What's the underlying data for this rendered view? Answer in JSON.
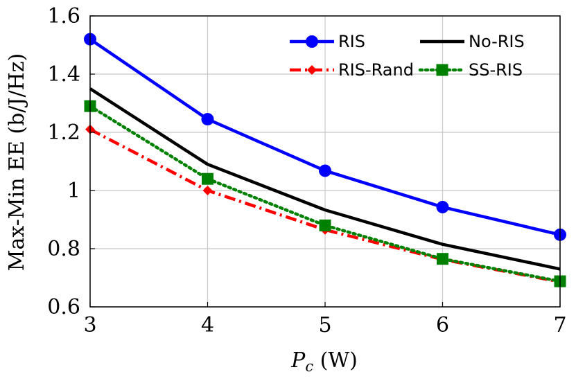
{
  "chart_data": {
    "type": "line",
    "x": [
      3,
      4,
      5,
      6,
      7
    ],
    "xlim": [
      3,
      7
    ],
    "ylim": [
      0.6,
      1.6
    ],
    "xticks": [
      "3",
      "4",
      "5",
      "6",
      "7"
    ],
    "yticks": [
      "0.6",
      "0.8",
      "1",
      "1.2",
      "1.4",
      "1.6"
    ],
    "xlabel_var": "P",
    "xlabel_sub": "c",
    "xlabel_unit": " (W)",
    "ylabel": "Max-Min EE (b/J/Hz)",
    "grid": true,
    "legend_position": "top-right",
    "series": [
      {
        "name": "RIS",
        "values": [
          1.52,
          1.245,
          1.068,
          0.943,
          0.848
        ],
        "color": "#0000ff",
        "marker": "circle",
        "dash": "solid"
      },
      {
        "name": "No-RIS",
        "values": [
          1.35,
          1.09,
          0.933,
          0.815,
          0.73
        ],
        "color": "#000000",
        "marker": "none",
        "dash": "solid"
      },
      {
        "name": "RIS-Rand",
        "values": [
          1.21,
          1.0,
          0.865,
          0.763,
          0.686
        ],
        "color": "#ff0000",
        "marker": "diamond",
        "dash": "dashdot"
      },
      {
        "name": "SS-RIS",
        "values": [
          1.29,
          1.04,
          0.88,
          0.765,
          0.688
        ],
        "color": "#008000",
        "marker": "square",
        "dash": "dotted"
      }
    ]
  }
}
